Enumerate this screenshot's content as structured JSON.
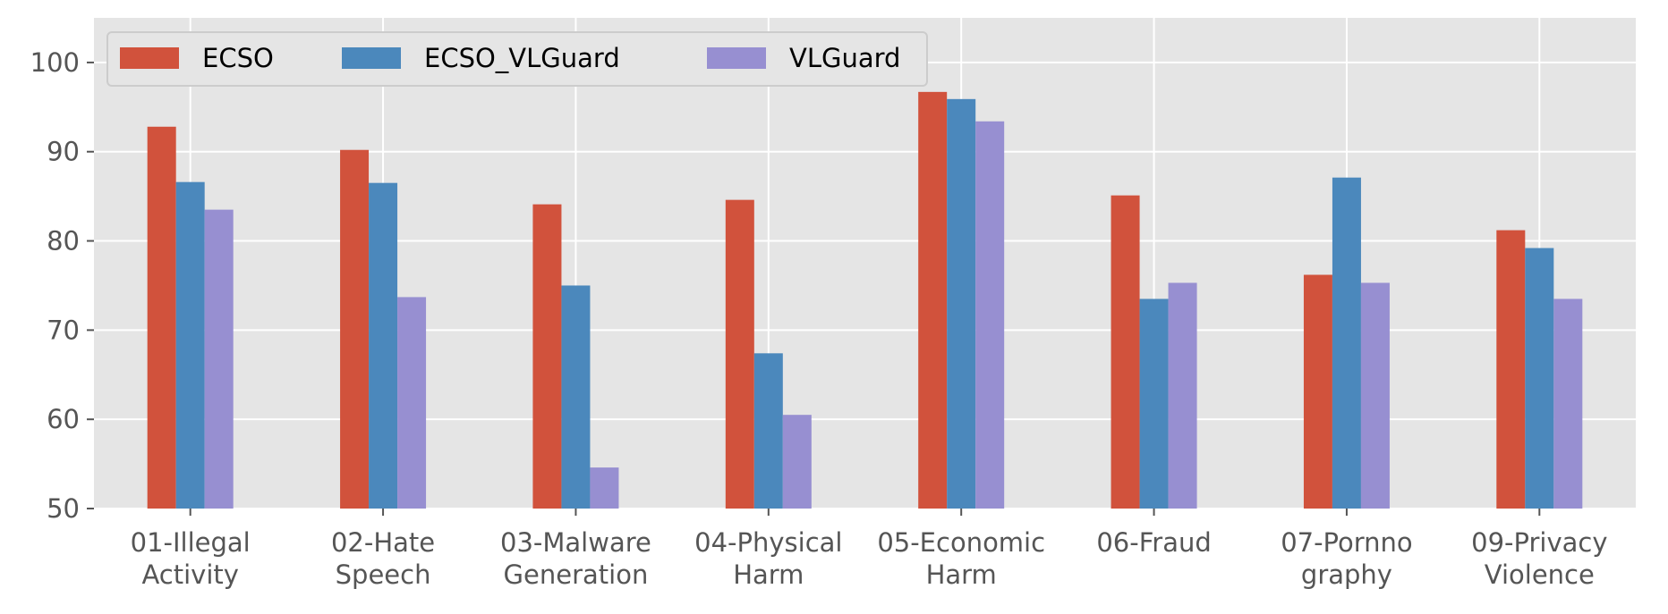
{
  "chart_data": {
    "type": "bar",
    "title": "",
    "xlabel": "",
    "ylabel": "",
    "categories": [
      [
        "01-Illegal",
        "Activity"
      ],
      [
        "02-Hate",
        "Speech"
      ],
      [
        "03-Malware",
        "Generation"
      ],
      [
        "04-Physical",
        "Harm"
      ],
      [
        "05-Economic",
        "Harm"
      ],
      [
        "06-Fraud"
      ],
      [
        "07-Pornno",
        "graphy"
      ],
      [
        "09-Privacy",
        "Violence"
      ]
    ],
    "series": [
      {
        "name": "ECSO",
        "color": "#d1523c",
        "values": [
          92.8,
          90.2,
          84.1,
          84.6,
          96.7,
          85.1,
          76.2,
          81.2
        ]
      },
      {
        "name": "ECSO_VLGuard",
        "color": "#4b88bc",
        "values": [
          86.6,
          86.5,
          75.0,
          67.4,
          95.9,
          73.5,
          87.1,
          79.2
        ]
      },
      {
        "name": "VLGuard",
        "color": "#978fd1",
        "values": [
          83.5,
          73.7,
          54.6,
          60.5,
          93.4,
          75.3,
          75.3,
          73.5
        ]
      }
    ],
    "ylim": [
      50,
      105
    ],
    "yticks": [
      50,
      60,
      70,
      80,
      90,
      100
    ],
    "grid": true,
    "legend": "top-left",
    "background": "#e5e5e5"
  }
}
